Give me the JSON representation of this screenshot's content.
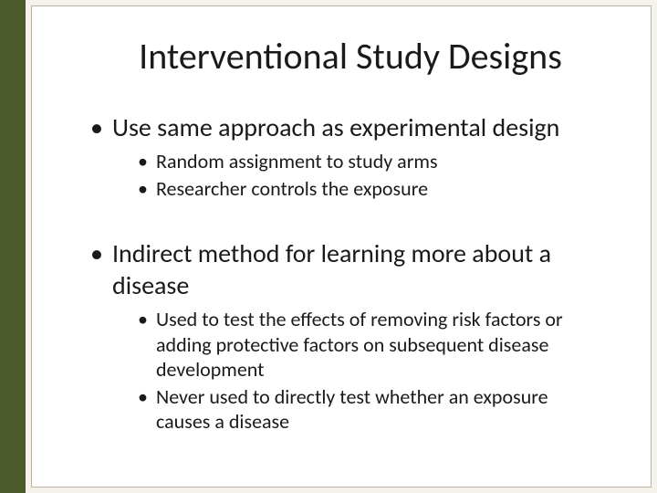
{
  "colors": {
    "sidebar": "#4a5a2a",
    "slide_bg": "#f4f2eb",
    "inner_bg": "#ffffff",
    "inner_border": "#b8b4a0",
    "text": "#1a1a1a"
  },
  "typography": {
    "title_fontsize": 40,
    "level1_fontsize": 28,
    "level2_fontsize": 22,
    "font_family": "Calibri"
  },
  "title": "Interventional Study Designs",
  "bullets": [
    {
      "text": "Use same approach as experimental design",
      "sub": [
        "Random assignment to study arms",
        "Researcher controls the exposure"
      ]
    },
    {
      "text": "Indirect method for learning more about a disease",
      "sub": [
        "Used to test the effects of removing risk factors or adding protective factors on subsequent disease development",
        "Never used to directly test whether an exposure causes a disease"
      ]
    }
  ]
}
